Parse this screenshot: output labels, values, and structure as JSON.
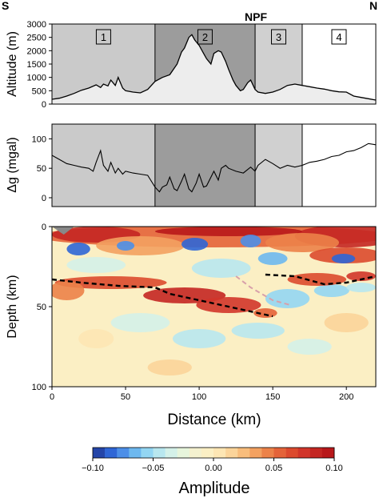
{
  "header": {
    "left_label": "S",
    "right_label": "N",
    "fault_label": "NPF"
  },
  "zones": [
    {
      "label": "1",
      "x0": 0,
      "x1": 70,
      "color": "#cacaca"
    },
    {
      "label": "2",
      "x0": 70,
      "x1": 138,
      "color": "#9c9c9c"
    },
    {
      "label": "3",
      "x0": 138,
      "x1": 170,
      "color": "#d0d0d0"
    },
    {
      "label": "4",
      "x0": 170,
      "x1": 220,
      "color": "#ffffff"
    }
  ],
  "chart_data": [
    {
      "type": "area",
      "ylabel": "Altitude (m)",
      "ylim": [
        0,
        3000
      ],
      "xlim": [
        0,
        220
      ],
      "yticks": [
        0,
        500,
        1000,
        1500,
        2000,
        2500,
        3000
      ],
      "x": [
        0,
        5,
        10,
        15,
        20,
        25,
        30,
        33,
        35,
        38,
        40,
        43,
        45,
        48,
        50,
        55,
        60,
        65,
        70,
        75,
        80,
        85,
        88,
        90,
        93,
        95,
        97,
        100,
        103,
        105,
        108,
        110,
        113,
        115,
        118,
        120,
        123,
        125,
        128,
        130,
        133,
        135,
        138,
        140,
        145,
        150,
        155,
        160,
        165,
        170,
        175,
        180,
        185,
        190,
        195,
        200,
        205,
        210,
        215,
        220
      ],
      "y": [
        180,
        220,
        300,
        400,
        520,
        600,
        720,
        620,
        750,
        680,
        900,
        700,
        1000,
        600,
        500,
        450,
        420,
        550,
        850,
        1000,
        1100,
        1500,
        1950,
        2100,
        2500,
        2600,
        2400,
        2200,
        1900,
        1700,
        1500,
        1900,
        2000,
        1950,
        1600,
        1300,
        900,
        700,
        500,
        550,
        800,
        900,
        550,
        450,
        400,
        450,
        550,
        700,
        750,
        700,
        650,
        600,
        560,
        500,
        460,
        450,
        300,
        250,
        200,
        150
      ]
    },
    {
      "type": "line",
      "ylabel": "Δg (mgal)",
      "ylim": [
        -15,
        125
      ],
      "xlim": [
        0,
        220
      ],
      "yticks": [
        0,
        50,
        100
      ],
      "x": [
        0,
        5,
        10,
        15,
        20,
        25,
        28,
        30,
        33,
        35,
        38,
        40,
        43,
        45,
        48,
        50,
        55,
        60,
        65,
        70,
        73,
        75,
        78,
        80,
        83,
        85,
        88,
        90,
        93,
        95,
        98,
        100,
        103,
        105,
        108,
        110,
        113,
        115,
        118,
        120,
        125,
        130,
        135,
        138,
        140,
        145,
        150,
        155,
        160,
        165,
        170,
        175,
        180,
        185,
        190,
        195,
        200,
        205,
        210,
        215,
        220
      ],
      "y": [
        72,
        65,
        58,
        55,
        52,
        50,
        45,
        60,
        80,
        55,
        45,
        60,
        42,
        50,
        40,
        45,
        42,
        40,
        38,
        18,
        10,
        18,
        22,
        35,
        15,
        12,
        28,
        40,
        15,
        10,
        25,
        40,
        18,
        20,
        35,
        45,
        30,
        50,
        55,
        50,
        45,
        42,
        52,
        45,
        55,
        65,
        58,
        50,
        55,
        52,
        55,
        60,
        62,
        65,
        70,
        72,
        78,
        80,
        85,
        92,
        90
      ]
    },
    {
      "type": "heatmap",
      "ylabel": "Depth (km)",
      "xlabel": "Distance (km)",
      "xlim": [
        0,
        220
      ],
      "ylim": [
        0,
        100
      ],
      "xticks": [
        0,
        50,
        100,
        150,
        200
      ],
      "yticks": [
        0,
        50,
        100
      ],
      "features": [
        {
          "name": "black-dashed-1",
          "color": "#000000",
          "x": [
            0,
            20,
            45,
            70,
            80,
            100,
            120,
            150
          ],
          "y": [
            33,
            35,
            37,
            38,
            42,
            46,
            50,
            56
          ]
        },
        {
          "name": "black-dashed-2",
          "color": "#000000",
          "x": [
            145,
            165,
            185,
            200,
            220
          ],
          "y": [
            30,
            31,
            36,
            35,
            31
          ]
        },
        {
          "name": "pink-dashed",
          "color": "#d8a0aa",
          "x": [
            125,
            135,
            150,
            162
          ],
          "y": [
            31,
            38,
            46,
            49
          ]
        }
      ]
    }
  ],
  "colorbar": {
    "title": "Amplitude",
    "ticks": [
      "−0.10",
      "−0.05",
      "0.00",
      "0.05",
      "0.10"
    ],
    "min": -0.1,
    "max": 0.1,
    "colors": [
      "#2445a8",
      "#2f66d6",
      "#4d8fe8",
      "#6db8ef",
      "#93d6f3",
      "#b8e7ef",
      "#d4f1e9",
      "#e7f5dc",
      "#f4f1cf",
      "#fbefc4",
      "#fde6b4",
      "#fbd49a",
      "#f8bd7c",
      "#f3a160",
      "#ec8249",
      "#e46339",
      "#dc4a2e",
      "#d1352a",
      "#c42622",
      "#b8181a"
    ]
  }
}
